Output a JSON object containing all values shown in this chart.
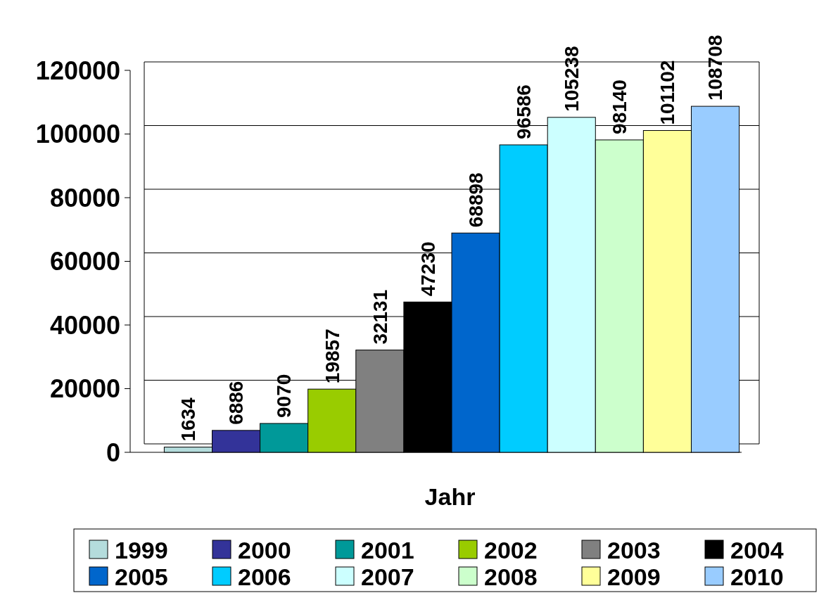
{
  "chart_data": {
    "type": "bar",
    "xlabel": "Jahr",
    "categories": [
      null,
      null,
      null,
      null,
      null,
      null,
      null,
      null,
      null,
      null,
      null,
      null
    ],
    "series": [
      {
        "name": "1999",
        "color": "#b4dcdc",
        "values": [
          1634,
          null,
          null,
          null,
          null,
          null,
          null,
          null,
          null,
          null,
          null,
          null
        ]
      },
      {
        "name": "2000",
        "color": "#333399",
        "values": [
          null,
          6886,
          null,
          null,
          null,
          null,
          null,
          null,
          null,
          null,
          null,
          null
        ]
      },
      {
        "name": "2001",
        "color": "#009999",
        "values": [
          null,
          null,
          9070,
          null,
          null,
          null,
          null,
          null,
          null,
          null,
          null,
          null
        ]
      },
      {
        "name": "2002",
        "color": "#99cc00",
        "values": [
          null,
          null,
          null,
          19857,
          null,
          null,
          null,
          null,
          null,
          null,
          null,
          null
        ]
      },
      {
        "name": "2003",
        "color": "#808080",
        "values": [
          null,
          null,
          null,
          null,
          32131,
          null,
          null,
          null,
          null,
          null,
          null,
          null
        ]
      },
      {
        "name": "2004",
        "color": "#000000",
        "values": [
          null,
          null,
          null,
          null,
          null,
          47230,
          null,
          null,
          null,
          null,
          null,
          null
        ]
      },
      {
        "name": "2005",
        "color": "#0066cc",
        "values": [
          null,
          null,
          null,
          null,
          null,
          null,
          68898,
          null,
          null,
          null,
          null,
          null
        ]
      },
      {
        "name": "2006",
        "color": "#00ccff",
        "values": [
          null,
          null,
          null,
          null,
          null,
          null,
          null,
          96586,
          null,
          null,
          null,
          null
        ]
      },
      {
        "name": "2007",
        "color": "#ccffff",
        "values": [
          null,
          null,
          null,
          null,
          null,
          null,
          null,
          null,
          105238,
          null,
          null,
          null
        ]
      },
      {
        "name": "2008",
        "color": "#ccffcc",
        "values": [
          null,
          null,
          null,
          null,
          null,
          null,
          null,
          null,
          null,
          98140,
          null,
          null
        ]
      },
      {
        "name": "2009",
        "color": "#ffff99",
        "values": [
          null,
          null,
          null,
          null,
          null,
          null,
          null,
          null,
          null,
          null,
          101102,
          null
        ]
      },
      {
        "name": "2010",
        "color": "#99ccff",
        "values": [
          null,
          null,
          null,
          null,
          null,
          null,
          null,
          null,
          null,
          null,
          null,
          108708
        ]
      }
    ],
    "ylim": [
      0,
      120000
    ],
    "yticks": [
      0,
      20000,
      40000,
      60000,
      80000,
      100000,
      120000
    ],
    "grid": "y",
    "legend": "bottom",
    "data_labels": true
  }
}
